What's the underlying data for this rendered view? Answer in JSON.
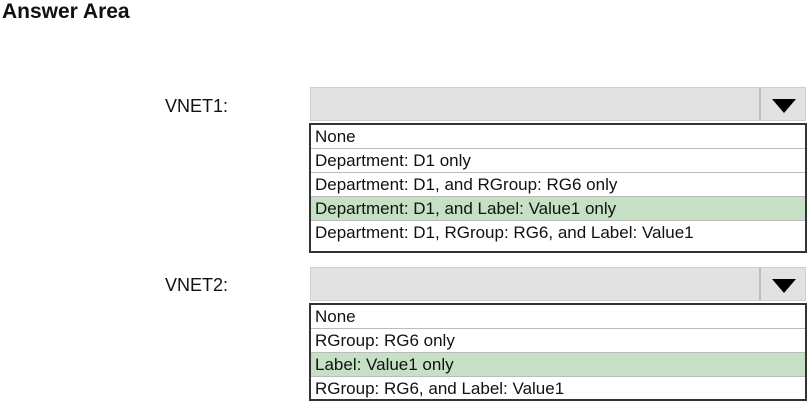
{
  "title": "Answer Area",
  "highlight_color": "#c5e0c5",
  "questions": [
    {
      "label": "VNET1:",
      "options": [
        "None",
        "Department: D1 only",
        "Department: D1, and RGroup: RG6 only",
        "Department: D1, and Label: Value1 only",
        "Department: D1, RGroup: RG6, and Label: Value1"
      ],
      "selected_index": 3
    },
    {
      "label": "VNET2:",
      "options": [
        "None",
        "RGroup: RG6 only",
        "Label: Value1 only",
        "RGroup: RG6, and Label: Value1"
      ],
      "selected_index": 2
    }
  ]
}
